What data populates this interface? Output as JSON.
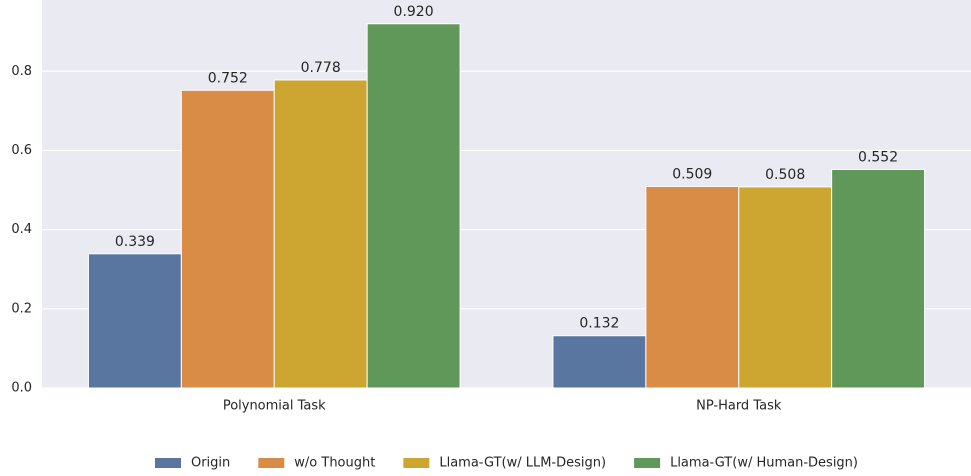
{
  "chart_data": {
    "type": "bar",
    "categories": [
      "Polynomial Task",
      "NP-Hard Task"
    ],
    "series": [
      {
        "name": "Origin",
        "color": "#5876a0",
        "values": [
          0.339,
          0.132
        ]
      },
      {
        "name": "w/o Thought",
        "color": "#d98c45",
        "values": [
          0.752,
          0.509
        ]
      },
      {
        "name": "Llama-GT(w/ LLM-Design)",
        "color": "#cda632",
        "values": [
          0.778,
          0.508
        ]
      },
      {
        "name": "Llama-GT(w/ Human-Design)",
        "color": "#5f9859",
        "values": [
          0.92,
          0.552
        ]
      }
    ],
    "value_labels": [
      [
        "0.339",
        "0.132"
      ],
      [
        "0.752",
        "0.509"
      ],
      [
        "0.778",
        "0.508"
      ],
      [
        "0.920",
        "0.552"
      ]
    ],
    "ylim": [
      0,
      0.98
    ],
    "yticks": [
      {
        "value": 0,
        "label": "0.0"
      },
      0.2,
      0.4,
      0.6,
      0.8
    ],
    "grid": true,
    "legend": "bottom"
  }
}
